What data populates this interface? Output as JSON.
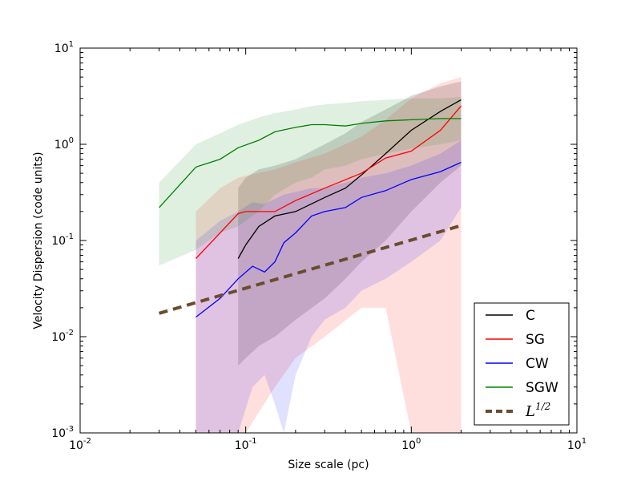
{
  "chart_data": {
    "type": "line",
    "title": "",
    "xlabel": "Size scale (pc)",
    "ylabel": "Velocity Dispersion (code units)",
    "xscale": "log",
    "yscale": "log",
    "xlim": [
      0.01,
      10
    ],
    "ylim": [
      0.001,
      10
    ],
    "tick_base": "10",
    "x_tick_exponents": [
      "-2",
      "-1",
      "0",
      "1"
    ],
    "y_tick_exponents": [
      "-3",
      "-2",
      "-1",
      "0",
      "1"
    ],
    "legend_position": "lower-right",
    "series": [
      {
        "name": "C",
        "color": "#000000",
        "band_opacity": 0.15,
        "x": [
          0.09,
          0.1,
          0.12,
          0.15,
          0.2,
          0.3,
          0.4,
          0.5,
          0.7,
          1.0,
          1.5,
          2.0
        ],
        "values": [
          0.065,
          0.09,
          0.14,
          0.18,
          0.2,
          0.28,
          0.35,
          0.48,
          0.8,
          1.4,
          2.2,
          2.9
        ],
        "upper": [
          0.35,
          0.45,
          0.55,
          0.6,
          0.7,
          1.0,
          1.3,
          1.7,
          2.3,
          3.2,
          4.0,
          4.5
        ],
        "lower": [
          0.005,
          0.006,
          0.008,
          0.01,
          0.015,
          0.025,
          0.04,
          0.06,
          0.1,
          0.2,
          0.4,
          0.6
        ]
      },
      {
        "name": "SG",
        "color": "#ff0000",
        "band_opacity": 0.13,
        "x": [
          0.05,
          0.07,
          0.09,
          0.1,
          0.15,
          0.2,
          0.3,
          0.5,
          0.7,
          1.0,
          1.5,
          2.0
        ],
        "values": [
          0.065,
          0.12,
          0.19,
          0.2,
          0.2,
          0.26,
          0.35,
          0.5,
          0.72,
          0.85,
          1.4,
          2.5
        ],
        "upper": [
          0.2,
          0.35,
          0.45,
          0.47,
          0.55,
          0.65,
          0.8,
          1.2,
          1.8,
          3.0,
          4.3,
          5.0
        ],
        "lower": [
          0.001,
          0.001,
          0.001,
          0.001,
          0.003,
          0.006,
          0.01,
          0.02,
          0.02,
          0.001,
          0.001,
          0.001
        ]
      },
      {
        "name": "CW",
        "color": "#0000ff",
        "band_opacity": 0.12,
        "x": [
          0.05,
          0.07,
          0.09,
          0.11,
          0.13,
          0.15,
          0.17,
          0.2,
          0.25,
          0.3,
          0.4,
          0.5,
          0.7,
          1.0,
          1.5,
          2.0
        ],
        "values": [
          0.016,
          0.025,
          0.04,
          0.054,
          0.047,
          0.06,
          0.095,
          0.12,
          0.18,
          0.2,
          0.22,
          0.28,
          0.33,
          0.43,
          0.52,
          0.65
        ],
        "upper": [
          0.1,
          0.16,
          0.2,
          0.25,
          0.24,
          0.27,
          0.3,
          0.32,
          0.35,
          0.35,
          0.4,
          0.45,
          0.5,
          0.6,
          0.8,
          1.1
        ],
        "lower": [
          0.001,
          0.001,
          0.001,
          0.003,
          0.004,
          0.002,
          0.001,
          0.004,
          0.01,
          0.015,
          0.02,
          0.03,
          0.04,
          0.06,
          0.1,
          0.22
        ]
      },
      {
        "name": "SGW",
        "color": "#008000",
        "band_opacity": 0.12,
        "x": [
          0.03,
          0.05,
          0.07,
          0.09,
          0.12,
          0.15,
          0.2,
          0.25,
          0.3,
          0.4,
          0.5,
          0.7,
          1.0,
          1.5,
          2.0
        ],
        "values": [
          0.22,
          0.58,
          0.7,
          0.92,
          1.1,
          1.35,
          1.5,
          1.6,
          1.6,
          1.55,
          1.65,
          1.75,
          1.8,
          1.85,
          1.85
        ],
        "upper": [
          0.4,
          1.0,
          1.3,
          1.6,
          1.9,
          2.1,
          2.3,
          2.5,
          2.6,
          2.7,
          2.8,
          2.9,
          3.0,
          3.0,
          3.1
        ],
        "lower": [
          0.055,
          0.08,
          0.12,
          0.14,
          0.2,
          0.3,
          0.4,
          0.45,
          0.55,
          0.6,
          0.7,
          0.8,
          0.9,
          1.0,
          1.1
        ]
      }
    ],
    "reference_line": {
      "name": "L^{1/2}",
      "label_base": "L",
      "label_exponent": "1/2",
      "color": "#6b4c2e",
      "style": "dashed",
      "x": [
        0.03,
        2.0
      ],
      "values": [
        0.0175,
        0.143
      ]
    }
  }
}
